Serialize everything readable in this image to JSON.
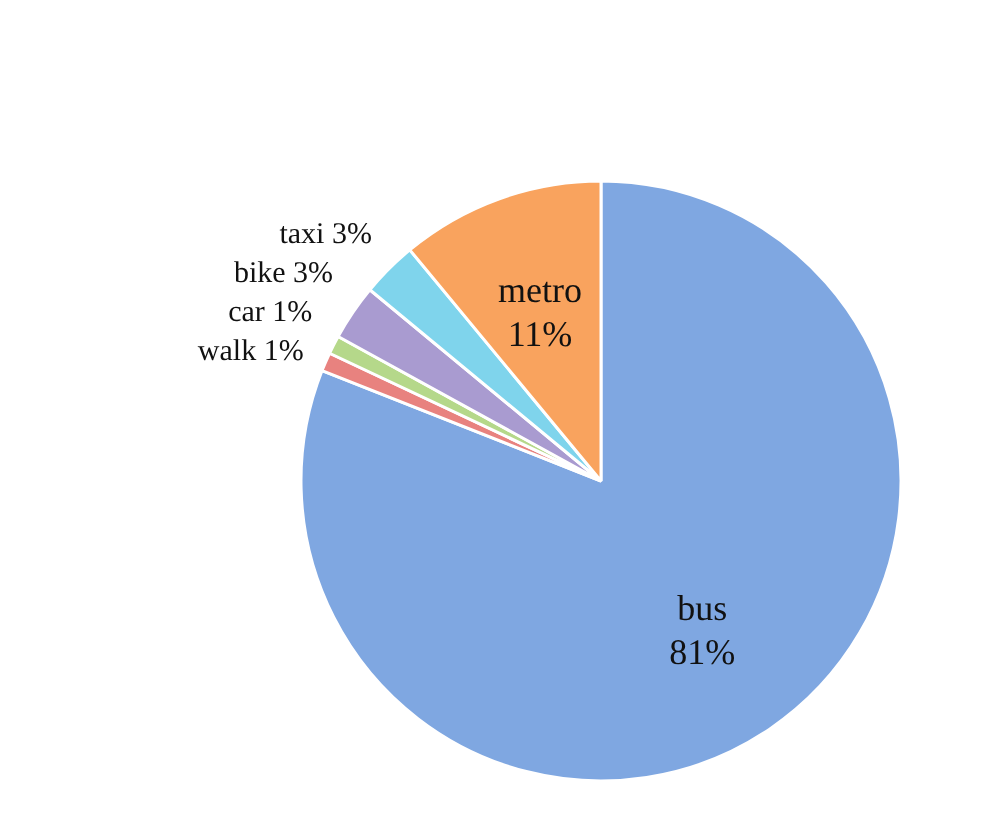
{
  "chart_data": {
    "type": "pie",
    "categories": [
      "bus",
      "walk",
      "car",
      "bike",
      "taxi",
      "metro"
    ],
    "values": [
      81,
      1,
      1,
      3,
      3,
      11
    ],
    "colors": [
      "#7fa7e1",
      "#e8827f",
      "#b5d88a",
      "#a99bd0",
      "#7fd4ec",
      "#f9a35e"
    ],
    "value_labels": [
      "81%",
      "1%",
      "1%",
      "3%",
      "3%",
      "11%"
    ]
  }
}
